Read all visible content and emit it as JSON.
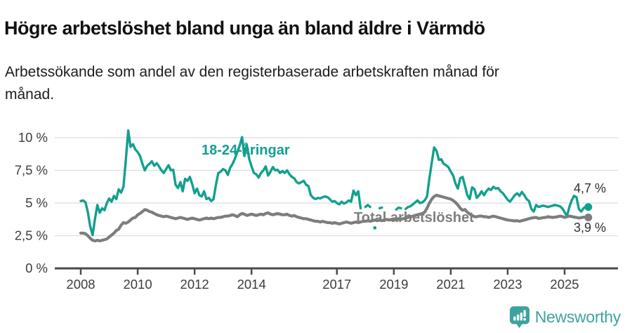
{
  "header": {
    "title": "Högre arbetslöshet bland unga än bland äldre i Värmdö",
    "subtitle": "Arbetssökande som andel av den registerbaserade arbetskraften månad för månad."
  },
  "branding": {
    "logo_text": "Newsworthy",
    "brand_color": "#3EA39E"
  },
  "chart_data": {
    "type": "line",
    "title": "Högre arbetslöshet bland unga än bland äldre i Värmdö",
    "subtitle": "Arbetssökande som andel av den registerbaserade arbetskraften månad för månad.",
    "unit": "%",
    "frequency": "monthly",
    "start": "2008-01",
    "end": "2025-11",
    "grid": "horizontal",
    "legend_position": "inline",
    "y_axis": {
      "tick_labels": [
        "0 %",
        "2,5 %",
        "5 %",
        "7,5 %",
        "10 %"
      ],
      "tick_values": [
        0,
        2.5,
        5,
        7.5,
        10
      ],
      "min": 0,
      "max": 10.6
    },
    "x_axis": {
      "tick_labels": [
        "2008",
        "2010",
        "2012",
        "2014",
        "2017",
        "2019",
        "2021",
        "2023",
        "2025"
      ],
      "tick_years": [
        2008,
        2010,
        2012,
        2014,
        2017,
        2019,
        2021,
        2023,
        2025
      ]
    },
    "series": [
      {
        "name": "18-24-åringar",
        "color": "#12A08E",
        "end_label": "4,7 %",
        "last_value": 4.7,
        "values": [
          5.15,
          5.2,
          5.05,
          4.3,
          3.2,
          2.55,
          3.8,
          4.85,
          4.25,
          4.6,
          4.45,
          5.0,
          5.35,
          5.1,
          5.55,
          5.3,
          6.05,
          5.8,
          6.25,
          8.3,
          10.55,
          9.3,
          9.5,
          9.1,
          8.9,
          8.6,
          8.0,
          7.5,
          7.85,
          8.0,
          8.2,
          7.85,
          8.05,
          7.8,
          7.5,
          7.3,
          7.6,
          7.9,
          7.5,
          7.55,
          6.4,
          6.15,
          6.6,
          5.9,
          6.85,
          6.7,
          7.0,
          6.45,
          5.75,
          6.1,
          5.6,
          5.5,
          5.9,
          5.3,
          5.4,
          5.15,
          5.3,
          6.4,
          7.3,
          7.4,
          7.6,
          7.5,
          7.15,
          7.7,
          8.0,
          8.4,
          8.9,
          9.4,
          10.05,
          8.6,
          9.45,
          8.4,
          7.8,
          7.3,
          7.2,
          6.95,
          7.3,
          7.5,
          7.8,
          7.1,
          7.4,
          7.75,
          7.5,
          7.55,
          7.3,
          7.45,
          7.3,
          7.5,
          7.2,
          7.0,
          6.9,
          6.6,
          6.5,
          6.6,
          6.7,
          6.4,
          6.3,
          5.6,
          5.4,
          5.3,
          5.4,
          5.35,
          5.45,
          5.5,
          5.45,
          5.3,
          5.1,
          5.15,
          5.0,
          4.9,
          5.1,
          4.95,
          5.05,
          5.2,
          5.1,
          5.95,
          5.6,
          5.9,
          4.6,
          null,
          4.7,
          4.85,
          4.7,
          null,
          3.1,
          null,
          4.6,
          4.65,
          null,
          null,
          null,
          null,
          null,
          4.5,
          4.65,
          4.6,
          null,
          4.55,
          4.7,
          4.75,
          4.9,
          5.05,
          5.2,
          5.0,
          5.05,
          5.2,
          5.5,
          6.9,
          8.1,
          9.25,
          9.0,
          8.3,
          8.35,
          8.0,
          7.9,
          7.75,
          7.4,
          7.1,
          6.5,
          6.1,
          6.9,
          7.0,
          6.3,
          5.6,
          5.3,
          6.2,
          6.05,
          5.4,
          5.6,
          5.9,
          5.6,
          5.9,
          6.1,
          6.0,
          6.25,
          6.1,
          6.15,
          5.9,
          5.75,
          5.5,
          5.25,
          5.1,
          5.35,
          5.6,
          5.75,
          5.55,
          5.85,
          5.6,
          5.3,
          5.15,
          4.55,
          4.35,
          4.85,
          4.7,
          4.75,
          4.8,
          4.75,
          4.7,
          4.75,
          4.8,
          4.85,
          4.8,
          4.75,
          4.6,
          4.3,
          4.0,
          4.7,
          5.2,
          5.55,
          5.45,
          4.55,
          4.35,
          4.6,
          4.75,
          4.7
        ]
      },
      {
        "name": "Total arbetslöshet",
        "color": "#7D7D7D",
        "end_label": "3,9 %",
        "last_value": 3.9,
        "values": [
          2.7,
          2.7,
          2.65,
          2.5,
          2.3,
          2.15,
          2.1,
          2.15,
          2.1,
          2.15,
          2.2,
          2.25,
          2.4,
          2.55,
          2.7,
          2.9,
          3.0,
          3.3,
          3.5,
          3.45,
          3.55,
          3.7,
          3.85,
          3.9,
          4.1,
          4.2,
          4.35,
          4.5,
          4.45,
          4.35,
          4.3,
          4.2,
          4.1,
          4.05,
          4.0,
          3.95,
          4.0,
          3.95,
          3.9,
          3.85,
          3.8,
          3.85,
          3.9,
          3.85,
          3.8,
          3.75,
          3.8,
          3.85,
          3.8,
          3.75,
          3.7,
          3.75,
          3.8,
          3.85,
          3.8,
          3.85,
          3.8,
          3.85,
          3.9,
          3.9,
          3.95,
          4.0,
          4.0,
          4.05,
          4.1,
          4.05,
          3.95,
          4.1,
          4.2,
          4.15,
          4.05,
          4.1,
          4.15,
          4.1,
          4.05,
          4.1,
          4.15,
          4.1,
          4.2,
          4.25,
          4.15,
          4.1,
          4.15,
          4.2,
          4.15,
          4.1,
          4.1,
          4.15,
          4.05,
          4.0,
          4.05,
          3.95,
          3.9,
          3.85,
          3.8,
          3.8,
          3.75,
          3.7,
          3.65,
          3.6,
          3.6,
          3.55,
          3.6,
          3.55,
          3.5,
          3.5,
          3.45,
          3.5,
          3.45,
          3.4,
          3.45,
          3.5,
          3.55,
          3.5,
          3.45,
          3.5,
          3.55,
          3.5,
          3.55,
          3.6,
          3.6,
          3.65,
          3.6,
          3.65,
          3.7,
          3.65,
          3.7,
          3.65,
          3.7,
          3.75,
          3.7,
          3.75,
          3.7,
          3.75,
          3.8,
          3.75,
          3.8,
          3.85,
          3.9,
          3.95,
          4.0,
          4.05,
          4.1,
          4.15,
          4.2,
          4.3,
          4.6,
          5.0,
          5.3,
          5.5,
          5.6,
          5.55,
          5.5,
          5.45,
          5.4,
          5.35,
          5.3,
          5.2,
          5.05,
          4.85,
          4.6,
          4.45,
          4.5,
          4.3,
          4.15,
          4.05,
          3.95,
          3.95,
          4.0,
          4.0,
          3.95,
          3.95,
          3.9,
          3.95,
          4.0,
          3.95,
          3.9,
          3.85,
          3.8,
          3.75,
          3.7,
          3.68,
          3.65,
          3.63,
          3.65,
          3.6,
          3.65,
          3.7,
          3.75,
          3.8,
          3.85,
          3.88,
          3.9,
          3.82,
          3.85,
          3.88,
          3.9,
          3.95,
          3.92,
          3.9,
          3.92,
          3.95,
          4.0,
          3.97,
          3.9,
          3.95,
          4.0,
          3.97,
          3.93,
          3.9,
          3.85,
          3.88,
          3.92,
          3.9,
          3.9
        ]
      }
    ]
  }
}
